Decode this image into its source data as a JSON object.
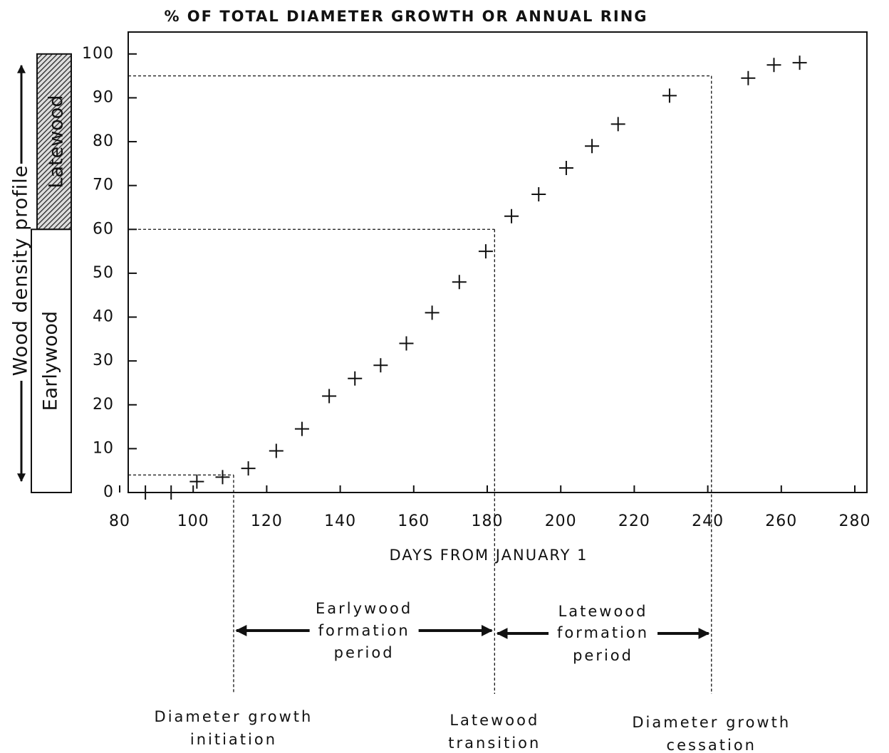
{
  "chart_data": {
    "type": "scatter",
    "title": "% OF TOTAL DIAMETER GROWTH OR ANNUAL RING",
    "x_label": "DAYS FROM JANUARY 1",
    "y_profile_label": "Wood density profile",
    "profile_zones": [
      "Latewood",
      "Earlywood"
    ],
    "x": [
      87,
      94,
      101,
      108,
      115,
      122.6,
      129.6,
      137,
      144,
      151,
      158,
      165,
      172.4,
      179.6,
      186.6,
      194,
      201.5,
      208.5,
      215.6,
      229.6,
      251,
      258,
      265
    ],
    "values": [
      0,
      0,
      2.5,
      3.5,
      5.5,
      9.5,
      14.5,
      22,
      26,
      29,
      34,
      41,
      48,
      55,
      63,
      68,
      74,
      79,
      84,
      90.5,
      94.5,
      97.5,
      98
    ],
    "color": "#111111",
    "xlim": [
      80,
      280
    ],
    "ylim": [
      0,
      105
    ],
    "xticks": [
      80,
      100,
      120,
      140,
      160,
      180,
      200,
      220,
      240,
      260,
      280
    ],
    "yticks": [
      0,
      10,
      20,
      30,
      40,
      50,
      60,
      70,
      80,
      90,
      100
    ],
    "guides": [
      {
        "x": 111,
        "y": 4,
        "label": [
          "Diameter growth",
          "initiation"
        ]
      },
      {
        "x": 182,
        "y": 60,
        "label": [
          "Latewood",
          "transition"
        ]
      },
      {
        "x": 241,
        "y": 95,
        "label": [
          "Diameter growth",
          "cessation"
        ]
      }
    ],
    "periods": [
      [
        "Earlywood",
        "formation",
        "period"
      ],
      [
        "Latewood",
        "formation",
        "period"
      ]
    ]
  }
}
